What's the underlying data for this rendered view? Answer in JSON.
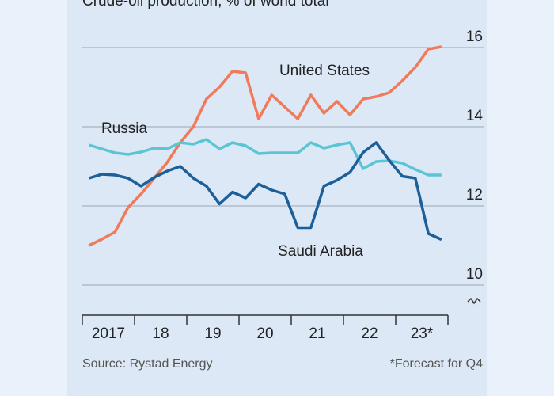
{
  "chart_data": {
    "type": "line",
    "title": "Crude-oil production, % of world total",
    "source": "Source: Rystad Energy",
    "note": "*Forecast for Q4",
    "categories": [
      "2017",
      "18",
      "19",
      "20",
      "21",
      "22",
      "23*"
    ],
    "x": [
      2017.125,
      2017.375,
      2017.625,
      2017.875,
      2018.125,
      2018.375,
      2018.625,
      2018.875,
      2019.125,
      2019.375,
      2019.625,
      2019.875,
      2020.125,
      2020.375,
      2020.625,
      2020.875,
      2021.125,
      2021.375,
      2021.625,
      2021.875,
      2022.125,
      2022.375,
      2022.625,
      2022.875,
      2023.125,
      2023.375,
      2023.625,
      2023.875
    ],
    "xlim": [
      2017,
      2024
    ],
    "xticks": [
      2017,
      2018,
      2019,
      2020,
      2021,
      2022,
      2023,
      2024
    ],
    "ylim": [
      10,
      16
    ],
    "yticks": [
      10,
      12,
      14,
      16
    ],
    "grid": true,
    "series": [
      {
        "name": "United States",
        "color": "#f07a5a",
        "values": [
          11.0,
          11.16,
          11.34,
          11.96,
          12.3,
          12.7,
          13.1,
          13.6,
          14.0,
          14.7,
          15.0,
          15.4,
          15.36,
          14.2,
          14.8,
          14.5,
          14.2,
          14.8,
          14.34,
          14.64,
          14.3,
          14.7,
          14.76,
          14.86,
          15.16,
          15.5,
          15.96,
          16.02
        ]
      },
      {
        "name": "Russia",
        "color": "#5bc6d3",
        "values": [
          13.54,
          13.44,
          13.34,
          13.3,
          13.36,
          13.46,
          13.44,
          13.6,
          13.56,
          13.68,
          13.44,
          13.6,
          13.52,
          13.32,
          13.34,
          13.34,
          13.34,
          13.6,
          13.46,
          13.54,
          13.6,
          12.94,
          13.12,
          13.14,
          13.08,
          12.92,
          12.78,
          12.78
        ]
      },
      {
        "name": "Saudi Arabia",
        "color": "#1b5f9b",
        "values": [
          12.7,
          12.8,
          12.78,
          12.7,
          12.5,
          12.72,
          12.88,
          13.0,
          12.7,
          12.5,
          12.05,
          12.35,
          12.2,
          12.55,
          12.4,
          12.3,
          11.45,
          11.45,
          12.5,
          12.65,
          12.85,
          13.35,
          13.6,
          13.15,
          12.75,
          12.7,
          11.3,
          11.15
        ]
      }
    ]
  }
}
